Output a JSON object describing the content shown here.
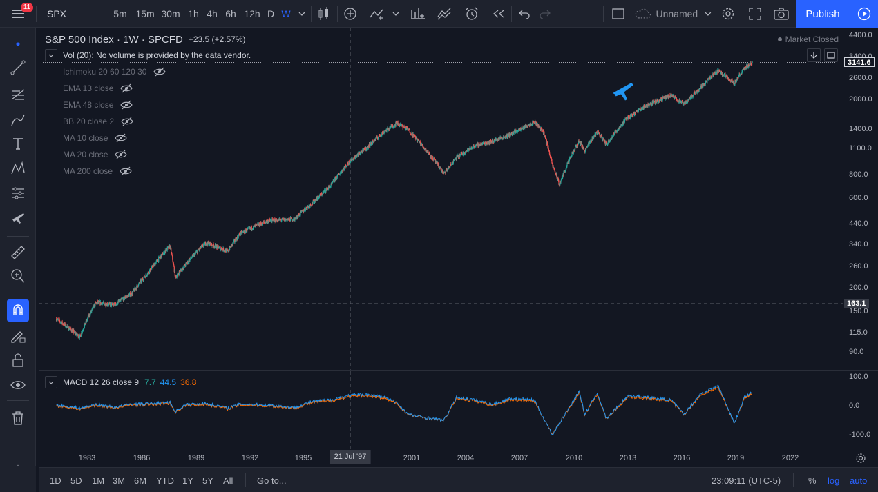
{
  "topbar": {
    "notification_count": "11",
    "symbol": "SPX",
    "intervals": [
      {
        "label": "5m",
        "active": false
      },
      {
        "label": "15m",
        "active": false
      },
      {
        "label": "30m",
        "active": false
      },
      {
        "label": "1h",
        "active": false
      },
      {
        "label": "4h",
        "active": false
      },
      {
        "label": "6h",
        "active": false
      },
      {
        "label": "12h",
        "active": false
      },
      {
        "label": "D",
        "active": false
      },
      {
        "label": "W",
        "active": true
      }
    ],
    "layout_name": "Unnamed",
    "publish_label": "Publish",
    "accent_color": "#2962ff"
  },
  "legend": {
    "title": "S&P 500 Index · 1W · SPCFD",
    "change": "+23.5 (+2.57%)",
    "vol": "Vol (20): No volume is provided by the data vendor.",
    "market_status": "Market Closed",
    "indicators": [
      "Ichimoku 20 60 120 30",
      "EMA 13 close",
      "EMA 48 close",
      "BB 20 close 2",
      "MA 10 close",
      "MA 20 close",
      "MA 200 close"
    ]
  },
  "price_scale": {
    "ticks": [
      "4400.0",
      "3400.0",
      "2600.0",
      "2000.0",
      "1400.0",
      "1100.0",
      "800.0",
      "600.0",
      "440.0",
      "340.0",
      "260.0",
      "200.0",
      "150.0",
      "115.0",
      "90.0"
    ],
    "last_price": "3141.6",
    "crosshair_price": "163.1"
  },
  "macd": {
    "label": "MACD 12 26 close 9",
    "value_macd": "7.7",
    "value_signal": "44.5",
    "value_hist": "36.8",
    "ticks": [
      "100.0",
      "0.0",
      "-100.0"
    ]
  },
  "time_scale": {
    "ticks": [
      "1983",
      "1986",
      "1989",
      "1992",
      "1995",
      "2001",
      "2004",
      "2007",
      "2010",
      "2013",
      "2016",
      "2019",
      "2022"
    ],
    "crosshair_date": "21 Jul '97"
  },
  "bottombar": {
    "ranges": [
      "1D",
      "5D",
      "1M",
      "3M",
      "6M",
      "YTD",
      "1Y",
      "5Y",
      "All"
    ],
    "goto": "Go to...",
    "clock": "23:09:11 (UTC-5)",
    "percent": "%",
    "log": "log",
    "auto": "auto"
  },
  "chart_data": {
    "type": "line",
    "title": "S&P 500 Index · 1W · SPCFD",
    "yscale": "log",
    "x": [
      1981.3,
      1982.6,
      1983.5,
      1984.5,
      1985.5,
      1986.5,
      1987.6,
      1987.9,
      1988.5,
      1989.6,
      1990.8,
      1991.5,
      1993.0,
      1994.5,
      1995.5,
      1996.5,
      1997.5,
      1998.5,
      1999.5,
      2000.2,
      2000.8,
      2001.7,
      2002.8,
      2003.5,
      2004.5,
      2005.5,
      2006.5,
      2007.8,
      2008.3,
      2008.8,
      2009.2,
      2010.3,
      2010.6,
      2011.3,
      2011.8,
      2013.0,
      2014.0,
      2015.4,
      2016.1,
      2017.0,
      2018.0,
      2018.9,
      2019.5,
      2019.9
    ],
    "series": [
      {
        "values": [
          135,
          108,
          165,
          160,
          185,
          245,
          330,
          225,
          265,
          345,
          310,
          385,
          450,
          460,
          560,
          690,
          920,
          1100,
          1350,
          1500,
          1380,
          1100,
          800,
          980,
          1130,
          1200,
          1300,
          1520,
          1350,
          900,
          700,
          1200,
          1060,
          1350,
          1150,
          1600,
          1850,
          2100,
          1880,
          2300,
          2850,
          2450,
          2950,
          3141.6
        ]
      },
      {
        "values": [
          2,
          -8,
          5,
          -5,
          6,
          7,
          12,
          -20,
          5,
          8,
          -8,
          6,
          3,
          -6,
          15,
          20,
          35,
          40,
          30,
          10,
          -30,
          -40,
          -50,
          30,
          20,
          5,
          25,
          20,
          -40,
          -100,
          -60,
          50,
          -30,
          45,
          -45,
          35,
          30,
          20,
          -30,
          40,
          70,
          -60,
          35,
          44.5
        ]
      }
    ],
    "ylim": [
      75,
      4800
    ]
  }
}
